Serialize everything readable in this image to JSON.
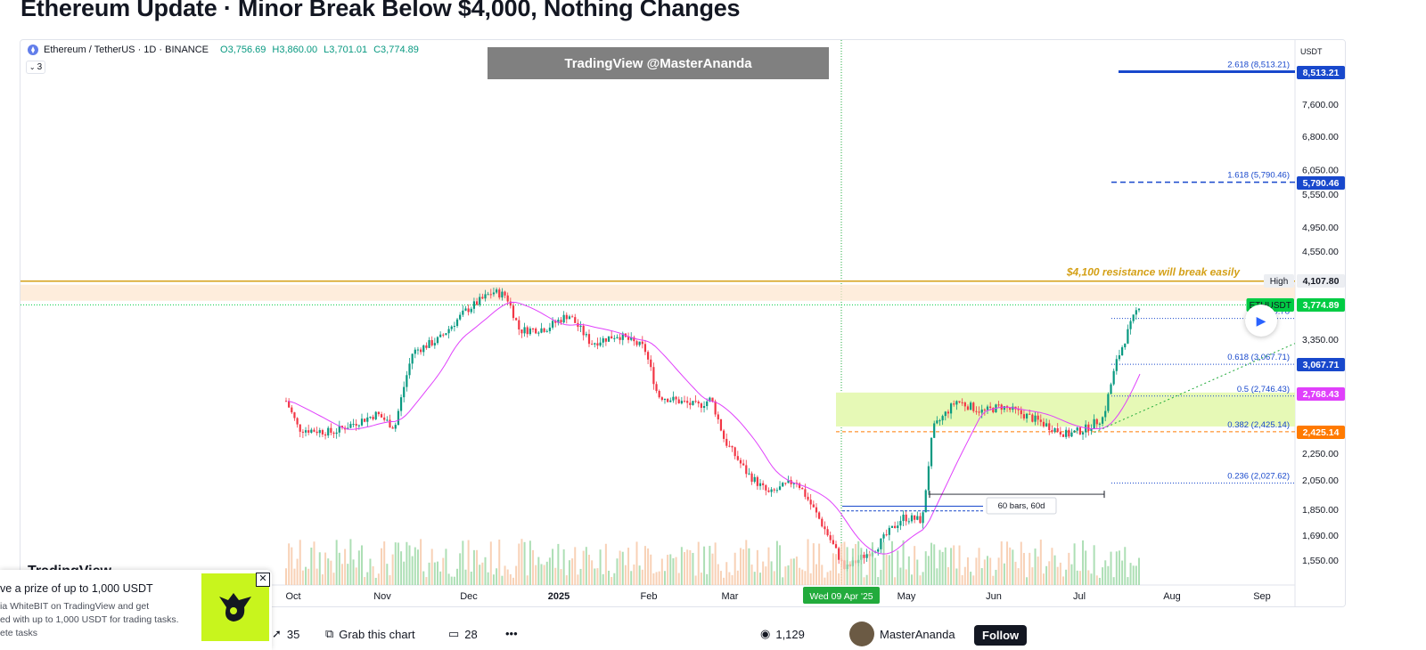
{
  "page": {
    "title": "Ethereum Update · Minor Break Below $4,000, Nothing Changes"
  },
  "chart_header": {
    "symbol": "Ethereum / TetherUS · 1D · BINANCE",
    "open": "O3,756.69",
    "high": "H3,860.00",
    "low": "L3,701.01",
    "close": "C3,774.89",
    "indicators_toggle": "3"
  },
  "watermark": "TradingView @MasterAnanda",
  "tv_logo": "TradingView",
  "chart_data": {
    "type": "candlestick",
    "axis_currency": "USDT",
    "y_ticks": [
      "7,600.00",
      "6,800.00",
      "6,050.00",
      "5,550.00",
      "4,950.00",
      "4,550.00",
      "3,350.00",
      "2,250.00",
      "2,050.00",
      "1,850.00",
      "1,690.00",
      "1,550.00"
    ],
    "y_scale": "log",
    "x_ticks": [
      "Oct",
      "Nov",
      "Dec",
      "2025",
      "Feb",
      "Mar",
      "May",
      "Jun",
      "Jul",
      "Aug",
      "Sep"
    ],
    "x_highlight": "Wed 09 Apr '25",
    "price_badges": [
      {
        "label": "8,513.21",
        "color": "#1848cc"
      },
      {
        "label": "5,790.46",
        "color": "#1848cc"
      },
      {
        "label": "4,107.80",
        "color": "#eceef2",
        "text_color": "#131722",
        "tag": "High"
      },
      {
        "label": "3,774.89",
        "color": "#00cc44",
        "tag": "ETHUSDT"
      },
      {
        "label": "3,067.71",
        "color": "#1848cc"
      },
      {
        "label": "2,768.43",
        "color": "#e040fb"
      },
      {
        "label": "2,425.14",
        "color": "#ff7a00"
      }
    ],
    "fib_levels": [
      {
        "ratio": "2.618",
        "label": "2.618 (8,513.21)",
        "price": 8513.21
      },
      {
        "ratio": "1.618",
        "label": "1.618 (5,790.46)",
        "price": 5790.46
      },
      {
        "ratio": "0.786",
        "label": "0.78",
        "label_tail": "13)",
        "price": 3600
      },
      {
        "ratio": "0.618",
        "label": "0.618 (3,067.71)",
        "price": 3067.71
      },
      {
        "ratio": "0.5",
        "label": "0.5 (2,746.43)",
        "price": 2746.43
      },
      {
        "ratio": "0.382",
        "label": "0.382 (2,425.14)",
        "price": 2425.14
      },
      {
        "ratio": "0.236",
        "label": "0.236 (2,027.62)",
        "price": 2027.62
      }
    ],
    "resistance": {
      "price": 4100,
      "label": "$4,100 resistance will break easily"
    },
    "measure_label": "60 bars, 60d",
    "last_price": 3774.89,
    "candle_count": 305,
    "colors": {
      "up": "#089981",
      "down": "#f23645",
      "ma": "#e040fb",
      "resistance": "#d4a017",
      "fib": "#1848cc",
      "support_zone": "#e6f9b6"
    }
  },
  "promo": {
    "title": "ve a prize of up to 1,000 USDT",
    "line1": "ia WhiteBIT on TradingView and get",
    "line2": "ed with up to 1,000 USDT for trading tasks.",
    "line3": "ete tasks"
  },
  "bottom_bar": {
    "boosts": "35",
    "grab": "Grab this chart",
    "comments": "28",
    "views": "1,129",
    "author": "MasterAnanda",
    "follow": "Follow"
  }
}
